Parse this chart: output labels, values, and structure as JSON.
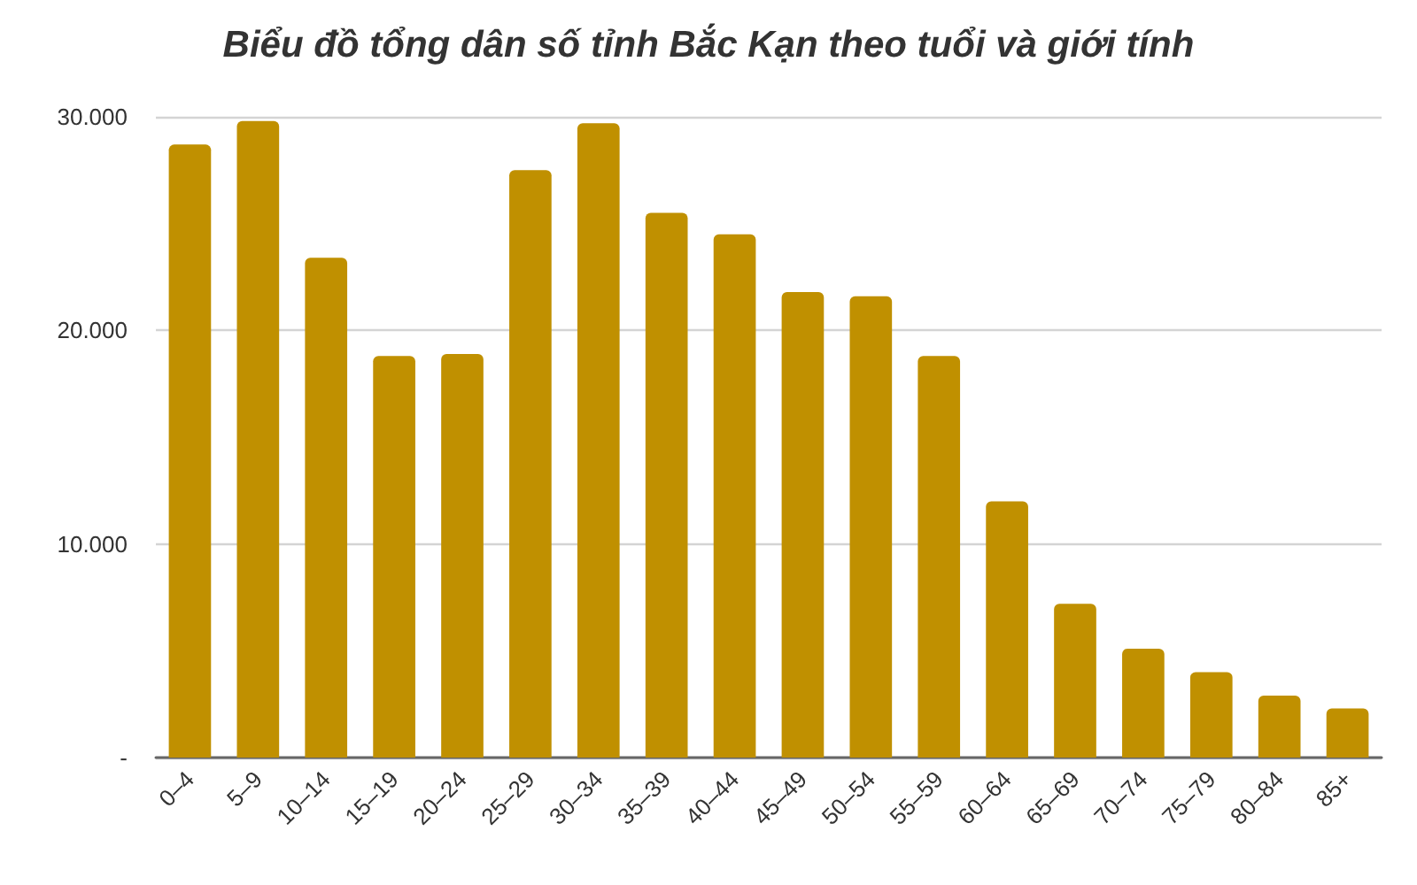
{
  "chart_data": {
    "type": "bar",
    "title": "Biểu đồ tổng dân số tỉnh Bắc Kạn theo tuổi và giới tính",
    "categories": [
      "0–4",
      "5–9",
      "10–14",
      "15–19",
      "20–24",
      "25–29",
      "30–34",
      "35–39",
      "40–44",
      "45–49",
      "50–54",
      "55–59",
      "60–64",
      "65–69",
      "70–74",
      "75–79",
      "80–84",
      "85+"
    ],
    "values": [
      28700,
      29800,
      23400,
      18800,
      18900,
      27500,
      29700,
      25500,
      24500,
      21800,
      21600,
      18800,
      12000,
      7200,
      5100,
      4000,
      2900,
      2300
    ],
    "color": "#c09000",
    "ylim": [
      0,
      30000
    ],
    "yticks": [
      {
        "value": 0,
        "label": "-"
      },
      {
        "value": 10000,
        "label": "10.000"
      },
      {
        "value": 20000,
        "label": "20.000"
      },
      {
        "value": 30000,
        "label": "30.000"
      }
    ],
    "grid": "y"
  }
}
